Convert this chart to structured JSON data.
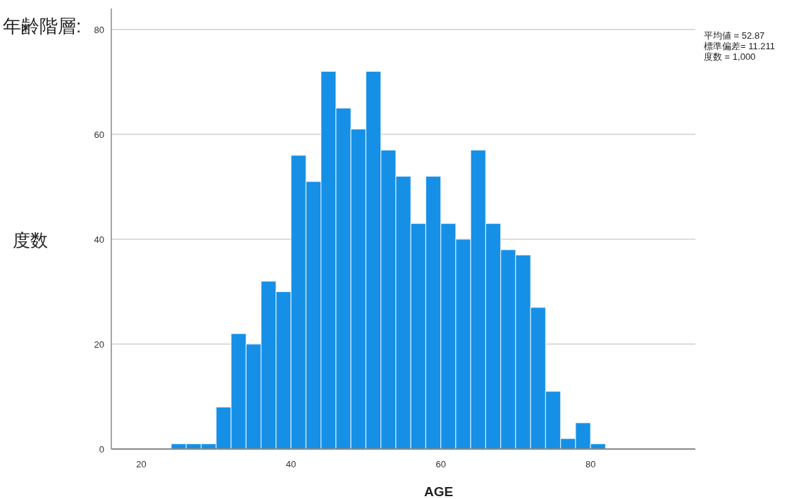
{
  "chart_data": {
    "type": "histogram",
    "title": "年齢階層:",
    "xlabel": "AGE",
    "ylabel": "度数",
    "bins": [
      24,
      26,
      28,
      30,
      32,
      34,
      36,
      38,
      40,
      42,
      44,
      46,
      48,
      50,
      52,
      54,
      56,
      58,
      60,
      62,
      64,
      66,
      68,
      70,
      72,
      74,
      76,
      78,
      80,
      82
    ],
    "values": [
      1,
      1,
      1,
      8,
      22,
      20,
      32,
      30,
      56,
      51,
      72,
      65,
      61,
      72,
      57,
      52,
      43,
      52,
      43,
      40,
      57,
      43,
      38,
      37,
      27,
      11,
      2,
      5,
      1
    ],
    "color": "#1590e6",
    "xlim": [
      16,
      94
    ],
    "ylim": [
      0,
      84
    ],
    "xticks": [
      20,
      40,
      60,
      80
    ],
    "yticks": [
      0,
      20,
      40,
      60,
      80
    ],
    "grid": "y",
    "annotations": [
      "平均値 = 52.87",
      "標準偏差= 11.211",
      "度数 = 1,000"
    ]
  }
}
